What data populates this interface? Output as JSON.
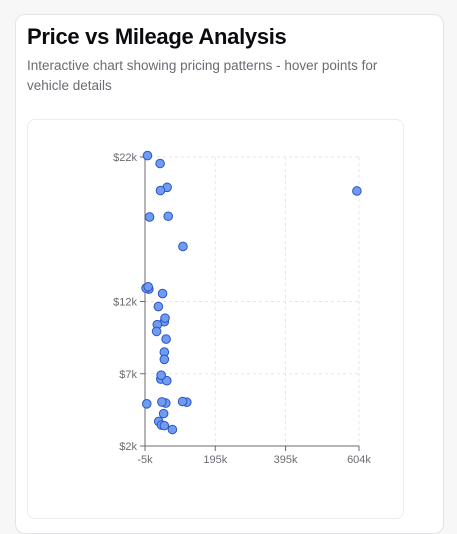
{
  "header": {
    "title": "Price vs Mileage Analysis",
    "subtitle": "Interactive chart showing pricing patterns - hover points for vehicle details"
  },
  "chart_data": {
    "type": "scatter",
    "title": "",
    "xlabel": "",
    "ylabel": "",
    "x_ticks": [
      "-5k",
      "195k",
      "395k",
      "604k"
    ],
    "x_tick_values": [
      -5000,
      195000,
      395000,
      604000
    ],
    "y_ticks": [
      "$2k",
      "$7k",
      "$12k",
      "$22k"
    ],
    "y_tick_values": [
      2000,
      7000,
      12000,
      22000
    ],
    "xlim": [
      -5000,
      604000
    ],
    "ylim": [
      2000,
      22000
    ],
    "grid": true,
    "point_color": "#6f9bf0",
    "point_stroke": "#2b55c2",
    "points": [
      {
        "x": 8000,
        "y": 17850
      },
      {
        "x": 6000,
        "y": 12860
      },
      {
        "x": -2000,
        "y": 12930
      },
      {
        "x": 61000,
        "y": 17900
      },
      {
        "x": 2000,
        "y": 22100
      },
      {
        "x": 38000,
        "y": 21550
      },
      {
        "x": 58000,
        "y": 19900
      },
      {
        "x": 39000,
        "y": 19680
      },
      {
        "x": 103000,
        "y": 15810
      },
      {
        "x": 34000,
        "y": 3700
      },
      {
        "x": 4000,
        "y": 13020
      },
      {
        "x": 50000,
        "y": 10600
      },
      {
        "x": 45000,
        "y": 12550
      },
      {
        "x": 33000,
        "y": 11650
      },
      {
        "x": 30000,
        "y": 10400
      },
      {
        "x": 28000,
        "y": 9930
      },
      {
        "x": 52000,
        "y": 10850
      },
      {
        "x": 55000,
        "y": 9400
      },
      {
        "x": 50000,
        "y": 8500
      },
      {
        "x": 50000,
        "y": 8000
      },
      {
        "x": 40000,
        "y": 6630
      },
      {
        "x": 57000,
        "y": 6520
      },
      {
        "x": 114000,
        "y": 5030
      },
      {
        "x": 102000,
        "y": 5080
      },
      {
        "x": 41000,
        "y": 6900
      },
      {
        "x": 54000,
        "y": 4970
      },
      {
        "x": 43000,
        "y": 5050
      },
      {
        "x": 48000,
        "y": 4240
      },
      {
        "x": 42000,
        "y": 3450
      },
      {
        "x": 50000,
        "y": 3410
      },
      {
        "x": 73000,
        "y": 3140
      },
      {
        "x": 0,
        "y": 4920
      },
      {
        "x": 598000,
        "y": 19650
      }
    ]
  }
}
